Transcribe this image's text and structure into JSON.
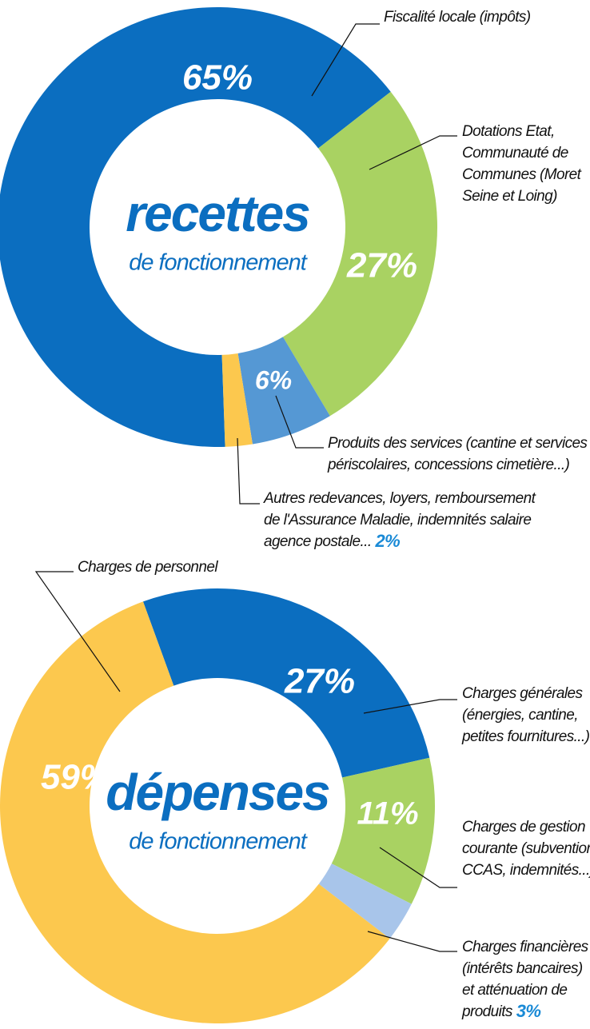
{
  "chart_data": [
    {
      "type": "donut",
      "center_title": "recettes",
      "center_subtitle": "de fonctionnement",
      "categories": [
        [
          "Fiscalité locale (impôts)"
        ],
        [
          "Dotations Etat,",
          "Communauté de",
          "Communes (Moret",
          "Seine et Loing)"
        ],
        [
          "Produits des services (cantine et services",
          "périscolaires, concessions cimetière...)"
        ],
        [
          "Autres redevances, loyers, remboursement",
          "de l'Assurance Maladie, indemnités salaire",
          "agence postale..."
        ]
      ],
      "values": [
        65,
        27,
        6,
        2
      ],
      "value_labels": [
        "65%",
        "27%",
        "6%",
        "2%"
      ],
      "colors": [
        "#0b6ec0",
        "#a9d262",
        "#5598d4",
        "#fcc84e"
      ]
    },
    {
      "type": "donut",
      "center_title": "dépenses",
      "center_subtitle": "de fonctionnement",
      "categories": [
        [
          "Charges générales",
          "(énergies, cantine,",
          "petites fournitures...)"
        ],
        [
          "Charges de gestion",
          "courante (subvention",
          "CCAS, indemnités...)"
        ],
        [
          "Charges financières",
          "(intérêts bancaires)",
          "et atténuation de",
          "produits"
        ],
        [
          "Charges de personnel"
        ]
      ],
      "values": [
        27,
        11,
        3,
        59
      ],
      "value_labels": [
        "27%",
        "11%",
        "3%",
        "59%"
      ],
      "colors": [
        "#0b6ec0",
        "#a9d262",
        "#a8c5ea",
        "#fcc84e"
      ]
    }
  ]
}
